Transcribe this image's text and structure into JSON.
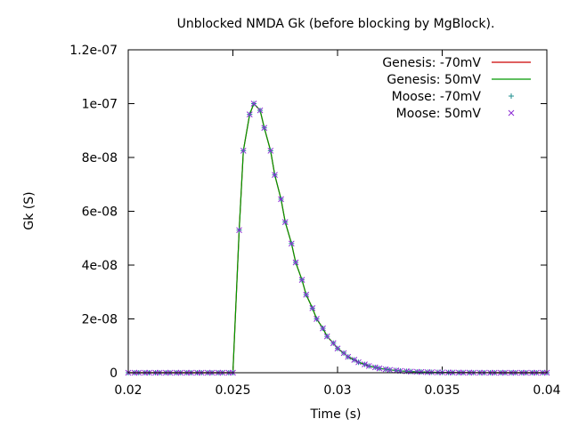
{
  "chart_data": {
    "type": "line",
    "title": "Unblocked NMDA Gk (before blocking by MgBlock).",
    "xlabel": "Time (s)",
    "ylabel": "Gk (S)",
    "xlim": [
      0.02,
      0.04
    ],
    "ylim": [
      0,
      1.2e-07
    ],
    "x_ticks": [
      0.02,
      0.025,
      0.03,
      0.035,
      0.04
    ],
    "x_tick_labels": [
      "0.02",
      "0.025",
      "0.03",
      "0.035",
      "0.04"
    ],
    "y_ticks": [
      0,
      2e-08,
      4e-08,
      6e-08,
      8e-08,
      1e-07,
      1.2e-07
    ],
    "y_tick_labels": [
      "0",
      "2e-08",
      "4e-08",
      "6e-08",
      "8e-08",
      "1e-07",
      "1.2e-07"
    ],
    "grid": false,
    "legend_position": "top-right",
    "series": [
      {
        "name": "Genesis: -70mV",
        "style": "line",
        "color": "#cc0000"
      },
      {
        "name": "Genesis: 50mV",
        "style": "line",
        "color": "#009900"
      },
      {
        "name": "Moose: -70mV",
        "style": "plus",
        "color": "#1f8f8f"
      },
      {
        "name": "Moose: 50mV",
        "style": "cross",
        "color": "#8b2bd4"
      }
    ],
    "x": [
      0.02,
      0.0203,
      0.0205,
      0.0208,
      0.021,
      0.0213,
      0.0215,
      0.0218,
      0.022,
      0.0223,
      0.0225,
      0.0228,
      0.023,
      0.0233,
      0.0235,
      0.0238,
      0.024,
      0.0243,
      0.0245,
      0.0248,
      0.025,
      0.0253,
      0.0255,
      0.0258,
      0.026,
      0.0263,
      0.0265,
      0.0268,
      0.027,
      0.0273,
      0.0275,
      0.0278,
      0.028,
      0.0283,
      0.0285,
      0.0288,
      0.029,
      0.0293,
      0.0295,
      0.0298,
      0.03,
      0.0303,
      0.0305,
      0.0308,
      0.031,
      0.0313,
      0.0315,
      0.0318,
      0.032,
      0.0323,
      0.0325,
      0.0328,
      0.033,
      0.0333,
      0.0335,
      0.0338,
      0.034,
      0.0343,
      0.0345,
      0.0348,
      0.035,
      0.0353,
      0.0355,
      0.0358,
      0.036,
      0.0363,
      0.0365,
      0.0368,
      0.037,
      0.0373,
      0.0375,
      0.0378,
      0.038,
      0.0383,
      0.0385,
      0.0388,
      0.039,
      0.0393,
      0.0395,
      0.0398,
      0.04
    ],
    "y": [
      0,
      0,
      0,
      0,
      0,
      0,
      0,
      0,
      0,
      0,
      0,
      0,
      0,
      0,
      0,
      0,
      0,
      0,
      0,
      0,
      0,
      5.3e-08,
      8.25e-08,
      9.6e-08,
      1e-07,
      9.75e-08,
      9.1e-08,
      8.25e-08,
      7.35e-08,
      6.45e-08,
      5.6e-08,
      4.8e-08,
      4.1e-08,
      3.45e-08,
      2.9e-08,
      2.4e-08,
      2e-08,
      1.65e-08,
      1.35e-08,
      1.1e-08,
      9e-09,
      7.3e-09,
      5.9e-09,
      4.8e-09,
      3.9e-09,
      3.1e-09,
      2.5e-09,
      2e-09,
      1.6e-09,
      1.3e-09,
      1.05e-09,
      8.5e-10,
      6.8e-10,
      5.5e-10,
      4.4e-10,
      3.5e-10,
      2.8e-10,
      2.2e-10,
      1.8e-10,
      1.4e-10,
      1.1e-10,
      9e-11,
      7e-11,
      5e-11,
      4e-11,
      3e-11,
      2.5e-11,
      2e-11,
      1.5e-11,
      1.2e-11,
      1e-11,
      8e-12,
      6e-12,
      5e-12,
      4e-12,
      3e-12,
      2.5e-12,
      2e-12,
      1.5e-12,
      1e-12,
      1e-12
    ]
  }
}
